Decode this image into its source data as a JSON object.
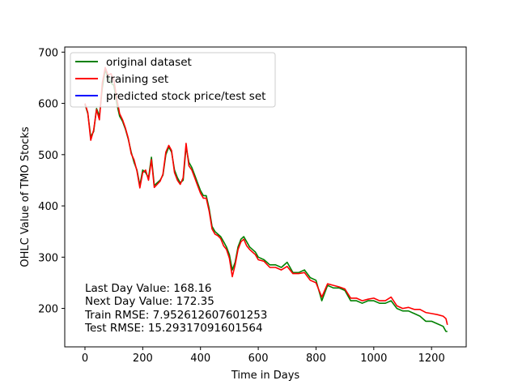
{
  "chart_data": {
    "type": "line",
    "title": "",
    "xlabel": "Time in Days",
    "ylabel": "OHLC Value of TMO Stocks",
    "xlim": [
      -70,
      1320
    ],
    "ylim": [
      125,
      710
    ],
    "xticks": [
      0,
      200,
      400,
      600,
      800,
      1000,
      1200
    ],
    "yticks": [
      200,
      300,
      400,
      500,
      600,
      700
    ],
    "grid": false,
    "legend_position": "top-left",
    "series": [
      {
        "name": "original dataset",
        "color": "#008000",
        "x": [
          0,
          10,
          20,
          30,
          40,
          50,
          60,
          70,
          80,
          90,
          100,
          110,
          120,
          130,
          140,
          150,
          160,
          170,
          180,
          190,
          200,
          210,
          220,
          230,
          240,
          250,
          260,
          270,
          280,
          290,
          300,
          310,
          320,
          330,
          340,
          350,
          360,
          370,
          380,
          390,
          400,
          410,
          420,
          430,
          440,
          450,
          460,
          470,
          480,
          490,
          500,
          510,
          520,
          530,
          540,
          550,
          560,
          570,
          580,
          590,
          600,
          620,
          640,
          660,
          680,
          700,
          720,
          740,
          760,
          780,
          800,
          820,
          840,
          860,
          880,
          900,
          920,
          940,
          960,
          980,
          1000,
          1020,
          1040,
          1060,
          1080,
          1100,
          1120,
          1140,
          1160,
          1180,
          1200,
          1220,
          1240,
          1250,
          1255
        ],
        "y": [
          598,
          580,
          535,
          545,
          590,
          575,
          630,
          665,
          650,
          640,
          635,
          600,
          575,
          565,
          550,
          530,
          505,
          485,
          470,
          440,
          470,
          465,
          455,
          495,
          440,
          445,
          450,
          460,
          500,
          515,
          505,
          470,
          455,
          445,
          450,
          515,
          485,
          475,
          460,
          445,
          430,
          420,
          420,
          395,
          360,
          350,
          345,
          340,
          330,
          320,
          305,
          275,
          290,
          320,
          335,
          340,
          330,
          320,
          315,
          310,
          300,
          295,
          285,
          285,
          280,
          290,
          270,
          270,
          275,
          260,
          255,
          215,
          245,
          240,
          240,
          235,
          215,
          215,
          210,
          215,
          215,
          210,
          210,
          215,
          200,
          195,
          195,
          190,
          185,
          175,
          175,
          170,
          165,
          155,
          155
        ]
      },
      {
        "name": "training set",
        "color": "#ff0000",
        "x": [
          0,
          10,
          20,
          30,
          40,
          50,
          60,
          70,
          80,
          90,
          100,
          110,
          120,
          130,
          140,
          150,
          160,
          170,
          180,
          190,
          200,
          210,
          220,
          230,
          240,
          250,
          260,
          270,
          280,
          290,
          300,
          310,
          320,
          330,
          340,
          350,
          360,
          370,
          380,
          390,
          400,
          410,
          420,
          430,
          440,
          450,
          460,
          470,
          480,
          490,
          500,
          510,
          520,
          530,
          540,
          550,
          560,
          570,
          580,
          590,
          600,
          620,
          640,
          660,
          680,
          700,
          720,
          740,
          760,
          780,
          800,
          820,
          840,
          860,
          880,
          900,
          920,
          940,
          960,
          980,
          1000,
          1020,
          1040,
          1060,
          1080,
          1100,
          1120,
          1140,
          1160,
          1180,
          1200,
          1220,
          1240,
          1250,
          1255
        ],
        "y": [
          600,
          582,
          528,
          548,
          588,
          568,
          640,
          670,
          655,
          658,
          645,
          610,
          580,
          568,
          552,
          532,
          502,
          490,
          468,
          435,
          465,
          470,
          450,
          490,
          436,
          442,
          448,
          462,
          505,
          518,
          508,
          465,
          450,
          442,
          455,
          522,
          478,
          470,
          455,
          440,
          425,
          415,
          415,
          390,
          355,
          345,
          342,
          336,
          322,
          315,
          298,
          262,
          285,
          315,
          330,
          335,
          322,
          315,
          310,
          305,
          295,
          292,
          280,
          280,
          275,
          282,
          268,
          268,
          270,
          255,
          250,
          222,
          248,
          245,
          242,
          238,
          220,
          220,
          215,
          218,
          220,
          215,
          215,
          222,
          205,
          200,
          202,
          198,
          198,
          192,
          190,
          188,
          185,
          180,
          168
        ]
      },
      {
        "name": "predicted stock price/test set",
        "color": "#0000ff",
        "x": [],
        "y": []
      }
    ],
    "annotations": [
      "Last Day Value: 168.16",
      "Next Day Value: 172.35",
      "Train RMSE: 7.952612607601253",
      "Test RMSE: 15.29317091601564"
    ]
  }
}
